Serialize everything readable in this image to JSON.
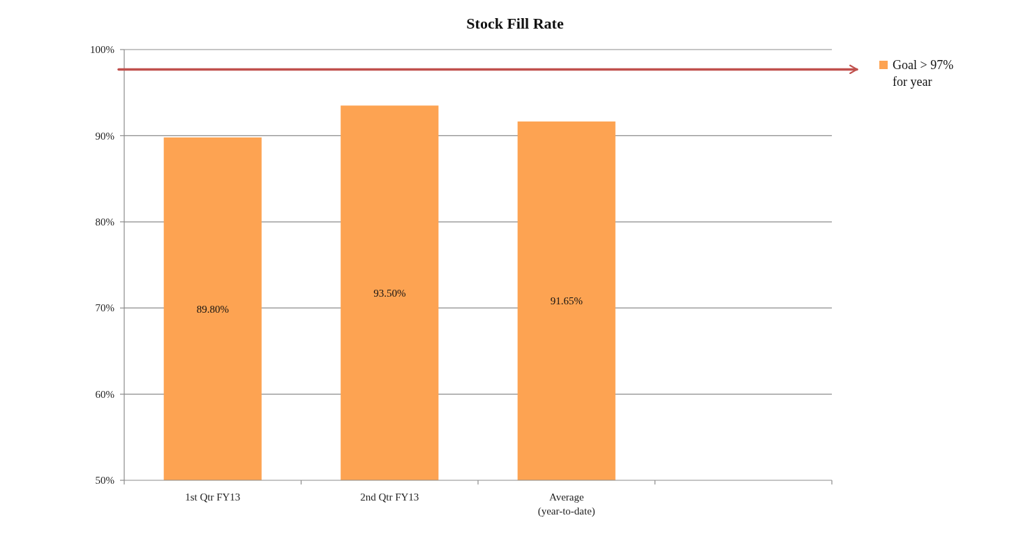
{
  "chart_data": {
    "type": "bar",
    "title": "Stock Fill Rate",
    "categories": [
      "1st Qtr FY13",
      "2nd Qtr FY13",
      "Average\n(year-to-date)",
      null
    ],
    "series": [
      {
        "name": "Goal > 97%\nfor year",
        "color": "#fda352",
        "values": [
          89.8,
          93.5,
          91.65,
          null
        ],
        "value_labels": [
          "89.80%",
          "93.50%",
          "91.65%",
          null
        ]
      }
    ],
    "ylim": [
      50,
      100
    ],
    "yticks": [
      {
        "value": 50,
        "label": "50%"
      },
      {
        "value": 60,
        "label": "60%"
      },
      {
        "value": 70,
        "label": "70%"
      },
      {
        "value": 80,
        "label": "80%"
      },
      {
        "value": 90,
        "label": "90%"
      },
      {
        "value": 100,
        "label": "100%"
      }
    ],
    "grid": "y",
    "legend": "top right",
    "ref_lines": [
      {
        "axis": "y",
        "value": 97.7,
        "color": "#c0504d",
        "line_style": "solid"
      }
    ]
  }
}
